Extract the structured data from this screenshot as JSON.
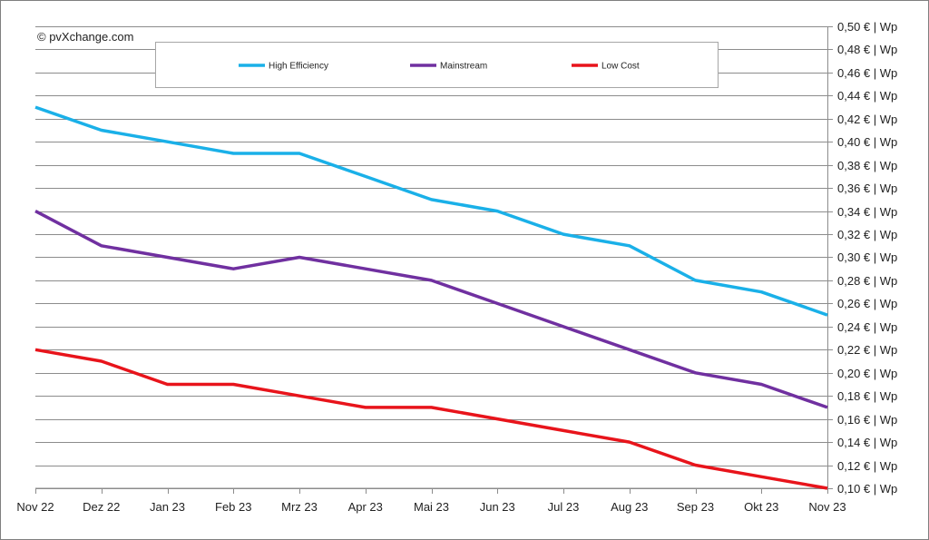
{
  "credit": "© pvXchange.com",
  "chart_data": {
    "type": "line",
    "categories": [
      "Nov 22",
      "Dez 22",
      "Jan 23",
      "Feb 23",
      "Mrz 23",
      "Apr 23",
      "Mai 23",
      "Jun 23",
      "Jul 23",
      "Aug 23",
      "Sep 23",
      "Okt 23",
      "Nov 23"
    ],
    "series": [
      {
        "name": "High Efficiency",
        "color": "#1ab0e8",
        "values": [
          0.43,
          0.41,
          0.4,
          0.39,
          0.39,
          0.37,
          0.35,
          0.34,
          0.32,
          0.31,
          0.28,
          0.27,
          0.25
        ]
      },
      {
        "name": "Mainstream",
        "color": "#7030a0",
        "values": [
          0.34,
          0.31,
          0.3,
          0.29,
          0.3,
          0.29,
          0.28,
          0.26,
          0.24,
          0.22,
          0.2,
          0.19,
          0.17
        ]
      },
      {
        "name": "Low Cost",
        "color": "#e8141b",
        "values": [
          0.22,
          0.21,
          0.19,
          0.19,
          0.18,
          0.17,
          0.17,
          0.16,
          0.15,
          0.14,
          0.12,
          0.11,
          0.1
        ]
      }
    ],
    "ylim": [
      0.1,
      0.5
    ],
    "ystep": 0.02,
    "ytick_labels": [
      "0,10 € | Wp",
      "0,12 € | Wp",
      "0,14 € | Wp",
      "0,16 € | Wp",
      "0,18 € | Wp",
      "0,20 € | Wp",
      "0,22 € | Wp",
      "0,24 € | Wp",
      "0,26 € | Wp",
      "0,28 € | Wp",
      "0,30 € | Wp",
      "0,32 € | Wp",
      "0,34 € | Wp",
      "0,36 € | Wp",
      "0,38 € | Wp",
      "0,40 € | Wp",
      "0,42 € | Wp",
      "0,44 € | Wp",
      "0,46 € | Wp",
      "0,48 € | Wp",
      "0,50 € | Wp"
    ],
    "yaxis_side": "right",
    "grid": true,
    "legend_position": "top"
  }
}
